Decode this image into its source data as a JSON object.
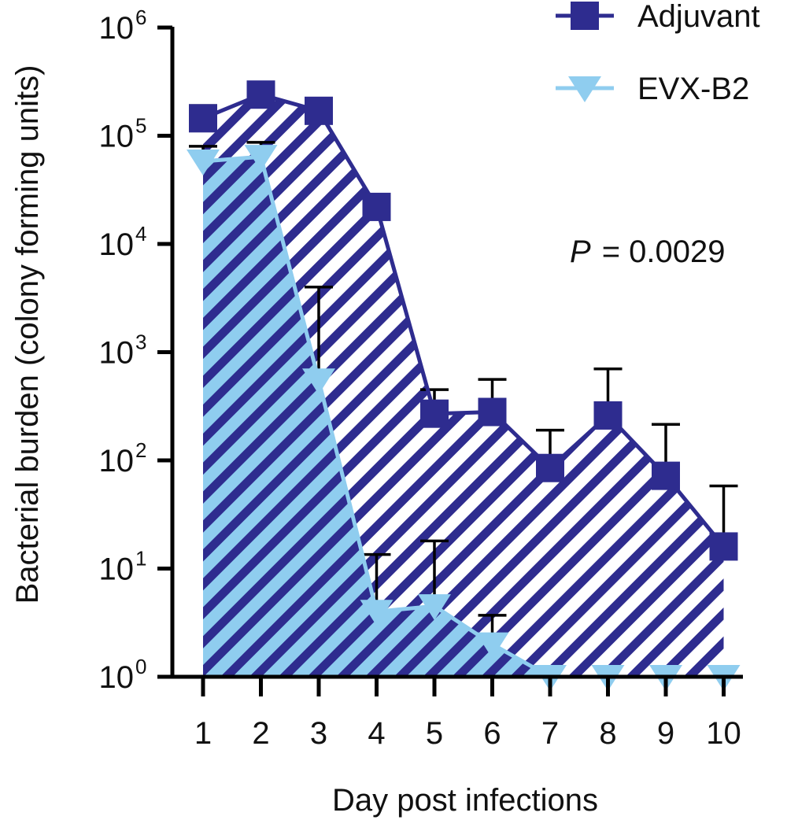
{
  "chart_data": {
    "type": "line",
    "title": "",
    "xlabel": "Day post infections",
    "ylabel": "Bacterial burden (colony forming units)",
    "yscale": "log10",
    "ylim": [
      1,
      1000000
    ],
    "y_ticks": [
      {
        "base": "10",
        "exp": "0"
      },
      {
        "base": "10",
        "exp": "1"
      },
      {
        "base": "10",
        "exp": "2"
      },
      {
        "base": "10",
        "exp": "3"
      },
      {
        "base": "10",
        "exp": "4"
      },
      {
        "base": "10",
        "exp": "5"
      },
      {
        "base": "10",
        "exp": "6"
      }
    ],
    "x": [
      "1",
      "2",
      "3",
      "4",
      "5",
      "6",
      "7",
      "8",
      "9",
      "10"
    ],
    "series": [
      {
        "name": "Adjuvant",
        "color": "#2e2c8f",
        "marker": "square",
        "values": [
          145000,
          240000,
          170000,
          22000,
          270,
          280,
          85,
          260,
          72,
          16
        ],
        "error_upper": [
          190000,
          null,
          null,
          null,
          450,
          560,
          190,
          700,
          215,
          58
        ]
      },
      {
        "name": "EVX-B2",
        "color": "#8fcdef",
        "marker": "triangle-down",
        "values": [
          58000,
          64000,
          550,
          4,
          4.5,
          2,
          1,
          1,
          1,
          1
        ],
        "error_upper": [
          80000,
          87000,
          4000,
          13.5,
          18,
          3.7,
          null,
          null,
          null,
          null
        ]
      }
    ],
    "annotation": {
      "p_symbol": "P",
      "p_text": "= 0.0029"
    },
    "legend_position": "top-right"
  }
}
